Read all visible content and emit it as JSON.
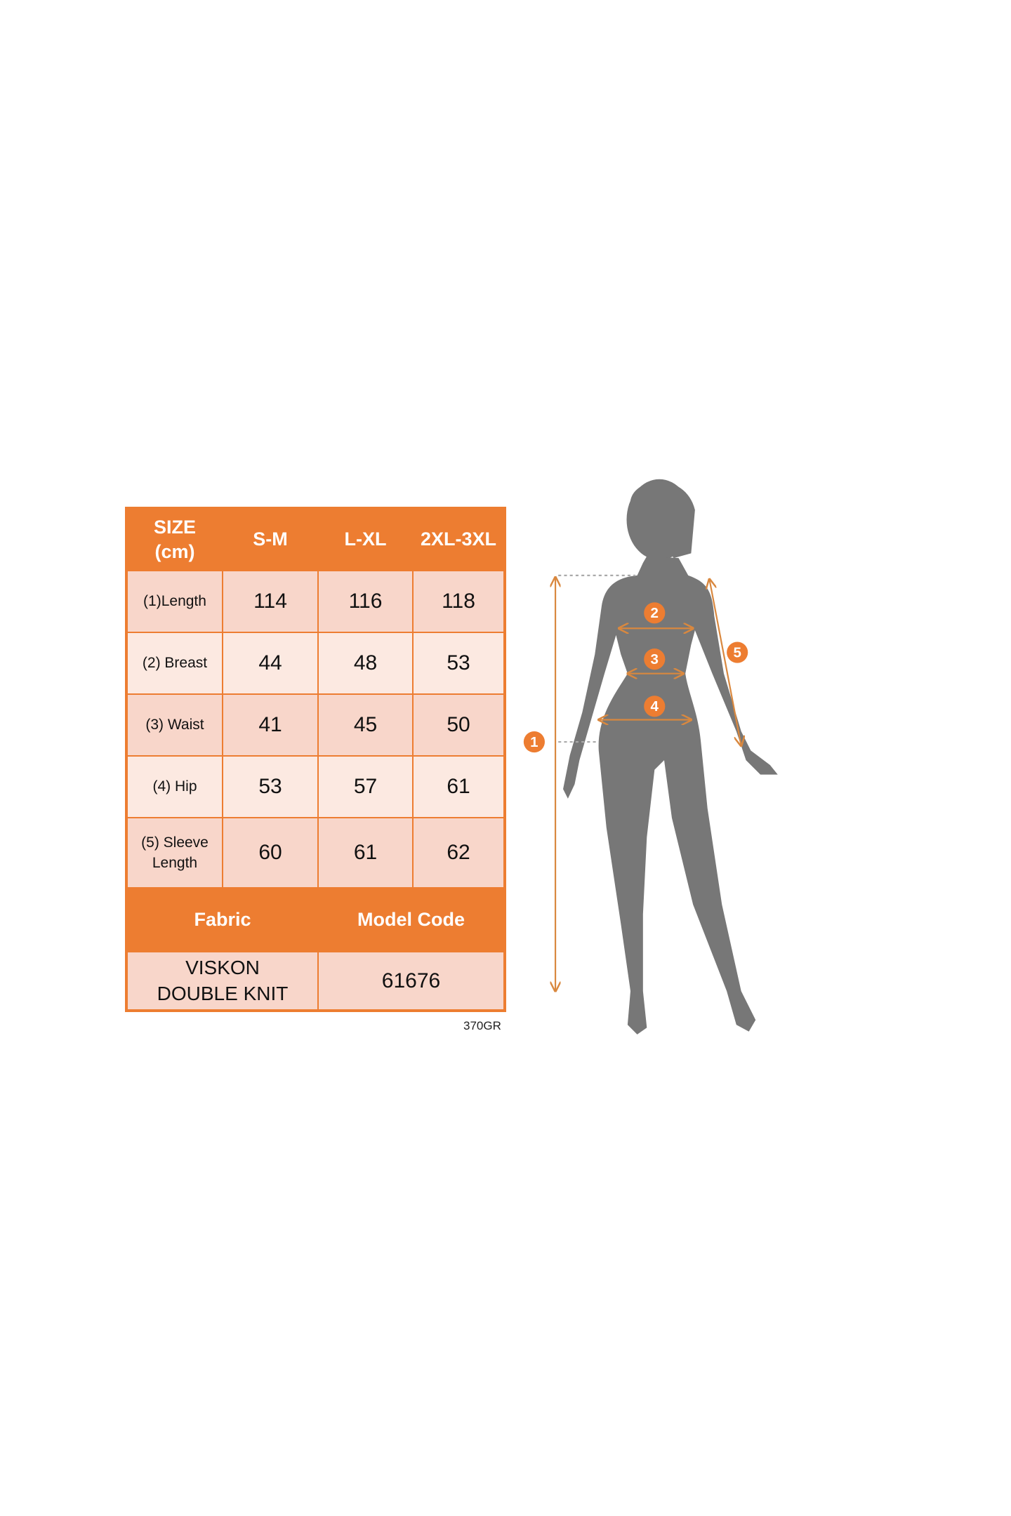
{
  "table": {
    "header": [
      "SIZE\n(cm)",
      "S-M",
      "L-XL",
      "2XL-3XL"
    ],
    "rows": [
      {
        "label": "(1)Length",
        "values": [
          "114",
          "116",
          "118"
        ]
      },
      {
        "label": "(2) Breast",
        "values": [
          "44",
          "48",
          "53"
        ]
      },
      {
        "label": "(3) Waist",
        "values": [
          "41",
          "45",
          "50"
        ]
      },
      {
        "label": "(4) Hip",
        "values": [
          "53",
          "57",
          "61"
        ]
      },
      {
        "label": "(5) Sleeve Length",
        "values": [
          "60",
          "61",
          "62"
        ]
      }
    ],
    "fabric_header": "Fabric",
    "model_code_header": "Model Code",
    "fabric_value": "VISKON  DOUBLE KNIT",
    "model_code_value": "61676"
  },
  "footnote": "370GR",
  "figure": {
    "markers": [
      "1",
      "2",
      "3",
      "4",
      "5"
    ]
  },
  "colors": {
    "accent": "#ED7D31",
    "cell_dark": "#F8D6CA",
    "cell_light": "#FCE9E1",
    "silhouette": "#777777"
  }
}
